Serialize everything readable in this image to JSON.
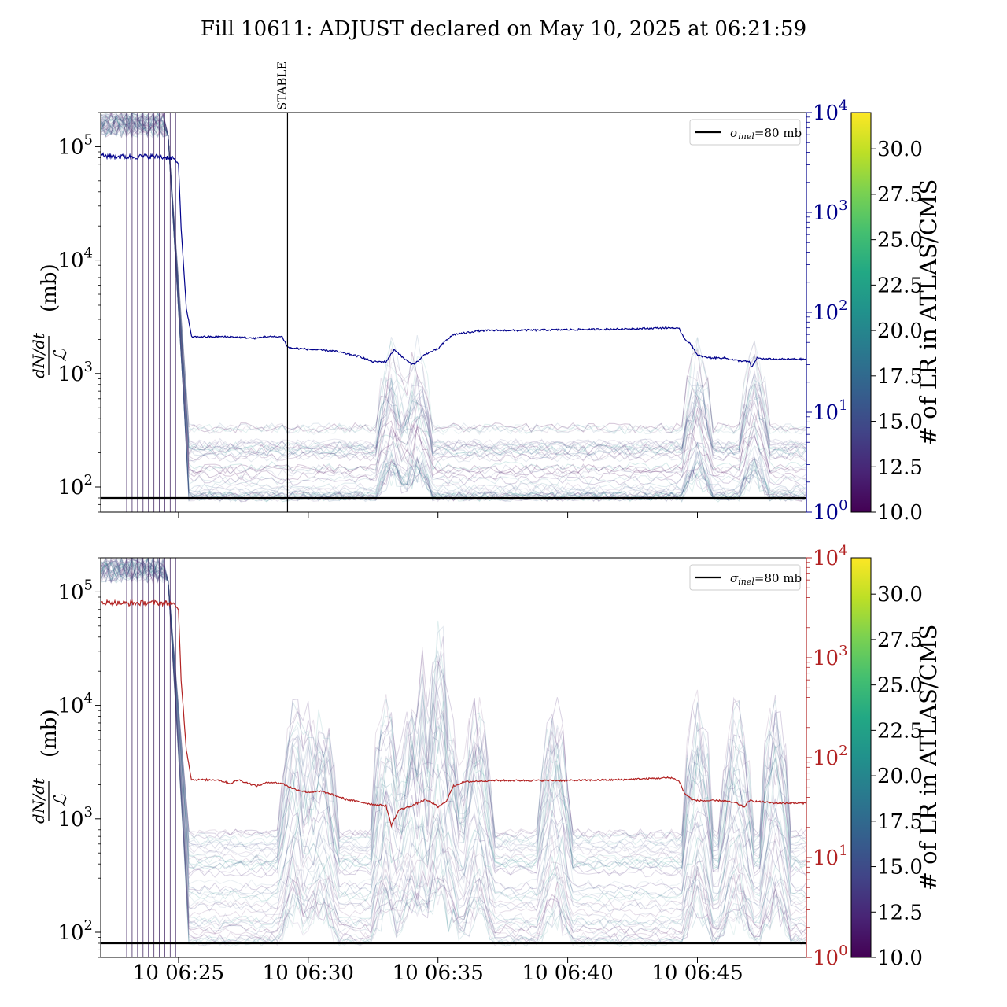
{
  "figure": {
    "title": "Fill 10611: ADJUST declared on May 10, 2025 at 06:21:59"
  },
  "chart_data": [
    {
      "type": "line",
      "panel": "top",
      "title": "Fill 10611: ADJUST declared on May 10, 2025 at 06:21:59",
      "ylabel_fraction_num": "dN/dt",
      "ylabel_fraction_den": "ℒ",
      "ylabel_unit": "(mb)",
      "yscale": "log",
      "ylim": [
        60,
        200000
      ],
      "yticks": [
        {
          "label": "10^5",
          "base": "10",
          "exp": "5",
          "value": 100000
        },
        {
          "label": "10^4",
          "base": "10",
          "exp": "4",
          "value": 10000
        },
        {
          "label": "10^3",
          "base": "10",
          "exp": "3",
          "value": 1000
        },
        {
          "label": "10^2",
          "base": "10",
          "exp": "2",
          "value": 100
        }
      ],
      "y2scale": "log",
      "y2lim": [
        1,
        10000
      ],
      "y2_color": "#00008b",
      "y2ticks": [
        {
          "label": "10^4",
          "base": "10",
          "exp": "4",
          "value": 10000
        },
        {
          "label": "10^3",
          "base": "10",
          "exp": "3",
          "value": 1000
        },
        {
          "label": "10^2",
          "base": "10",
          "exp": "2",
          "value": 100
        },
        {
          "label": "10^1",
          "base": "10",
          "exp": "1",
          "value": 10
        },
        {
          "label": "10^0",
          "base": "10",
          "exp": "0",
          "value": 1
        }
      ],
      "xlim_minutes_after_0620": [
        2.0,
        29.2
      ],
      "xtick_minutes_after_0620": [
        5,
        10,
        15,
        20,
        25
      ],
      "xtick_labels_shown": false,
      "event_marker": {
        "label": "STABLE",
        "x_minutes_after_0620": 9.2
      },
      "reference_line": {
        "name": "σinel=80 mb",
        "legend_sigma": "σ",
        "legend_sub": "inel",
        "legend_rest": "=80 mb",
        "value": 80,
        "color": "#000000"
      },
      "legend_position": "top-right",
      "highlight_series": {
        "axis": "right",
        "color": "#00008b",
        "x_minutes_after_0620": [
          2.0,
          3.0,
          4.0,
          4.8,
          5.0,
          5.1,
          5.3,
          5.5,
          5.6,
          7.0,
          8.0,
          8.3,
          9.0,
          9.2,
          9.3,
          11.0,
          12.0,
          12.5,
          13.0,
          13.3,
          13.4,
          13.6,
          14.0,
          14.2,
          14.5,
          15.0,
          15.3,
          15.6,
          16.0,
          16.5,
          17.0,
          18.0,
          20.0,
          22.0,
          24.0,
          24.3,
          24.5,
          24.8,
          25.0,
          25.5,
          26.0,
          26.5,
          27.0,
          27.1,
          27.3,
          27.6,
          28.0,
          29.2
        ],
        "values": [
          3700,
          3600,
          3650,
          3500,
          3000,
          700,
          110,
          57,
          57,
          57,
          55,
          57,
          57,
          45,
          44,
          41,
          36,
          32,
          32,
          42,
          41,
          36,
          30,
          32,
          38,
          43,
          52,
          60,
          62,
          65,
          66,
          66,
          67,
          68,
          70,
          68,
          55,
          46,
          37,
          35,
          35,
          33,
          32,
          28,
          35,
          34,
          34,
          34
        ]
      },
      "background_series": {
        "count_approx": 45,
        "color_scale_range": [
          10.0,
          32.0
        ],
        "note_values_shown_as_curves": true
      },
      "colorbar": {
        "label": "# of LR in ATLAS/CMS",
        "range": [
          10.0,
          32.0
        ],
        "ticks": [
          "10.0",
          "12.5",
          "15.0",
          "17.5",
          "20.0",
          "22.5",
          "25.0",
          "27.5",
          "30.0"
        ],
        "tick_values": [
          10.0,
          12.5,
          15.0,
          17.5,
          20.0,
          22.5,
          25.0,
          27.5,
          30.0
        ],
        "colormap": "viridis"
      }
    },
    {
      "type": "line",
      "panel": "bottom",
      "ylabel_fraction_num": "dN/dt",
      "ylabel_fraction_den": "ℒ",
      "ylabel_unit": "(mb)",
      "yscale": "log",
      "ylim": [
        60,
        200000
      ],
      "yticks": [
        {
          "label": "10^5",
          "base": "10",
          "exp": "5",
          "value": 100000
        },
        {
          "label": "10^4",
          "base": "10",
          "exp": "4",
          "value": 10000
        },
        {
          "label": "10^3",
          "base": "10",
          "exp": "3",
          "value": 1000
        },
        {
          "label": "10^2",
          "base": "10",
          "exp": "2",
          "value": 100
        }
      ],
      "y2scale": "log",
      "y2lim": [
        1,
        10000
      ],
      "y2_color": "#b22222",
      "y2ticks": [
        {
          "label": "10^4",
          "base": "10",
          "exp": "4",
          "value": 10000
        },
        {
          "label": "10^3",
          "base": "10",
          "exp": "3",
          "value": 1000
        },
        {
          "label": "10^2",
          "base": "10",
          "exp": "2",
          "value": 100
        },
        {
          "label": "10^1",
          "base": "10",
          "exp": "1",
          "value": 10
        },
        {
          "label": "10^0",
          "base": "10",
          "exp": "0",
          "value": 1
        }
      ],
      "xlim_minutes_after_0620": [
        2.0,
        29.2
      ],
      "xticks": [
        {
          "label": "10 06:25",
          "minutes_after_0620": 5
        },
        {
          "label": "10 06:30",
          "minutes_after_0620": 10
        },
        {
          "label": "10 06:35",
          "minutes_after_0620": 15
        },
        {
          "label": "10 06:40",
          "minutes_after_0620": 20
        },
        {
          "label": "10 06:45",
          "minutes_after_0620": 25
        }
      ],
      "reference_line": {
        "name": "σinel=80 mb",
        "legend_sigma": "σ",
        "legend_sub": "inel",
        "legend_rest": "=80 mb",
        "value": 80,
        "color": "#000000"
      },
      "legend_position": "top-right",
      "highlight_series": {
        "axis": "right",
        "color": "#b22222",
        "x_minutes_after_0620": [
          2.0,
          3.0,
          4.0,
          4.8,
          5.0,
          5.1,
          5.3,
          5.5,
          5.6,
          6.5,
          7.0,
          7.3,
          8.0,
          8.5,
          9.0,
          9.5,
          10.0,
          10.5,
          11.0,
          11.5,
          12.0,
          12.5,
          13.0,
          13.2,
          13.5,
          14.0,
          14.5,
          14.8,
          15.0,
          15.3,
          15.6,
          16.0,
          16.5,
          17.0,
          18.0,
          20.0,
          22.0,
          24.0,
          24.3,
          24.5,
          24.8,
          25.0,
          26.0,
          26.5,
          26.8,
          27.0,
          27.5,
          28.0,
          29.2
        ],
        "values": [
          3600,
          3500,
          3550,
          3500,
          3000,
          600,
          120,
          60,
          60,
          60,
          55,
          60,
          52,
          57,
          55,
          48,
          45,
          46,
          42,
          38,
          36,
          34,
          33,
          21,
          30,
          33,
          38,
          35,
          32,
          36,
          52,
          57,
          58,
          59,
          59,
          59,
          60,
          63,
          58,
          44,
          38,
          37,
          37,
          35,
          32,
          37,
          36,
          35,
          35
        ]
      },
      "background_series": {
        "count_approx": 45,
        "color_scale_range": [
          10.0,
          32.0
        ],
        "note_values_shown_as_curves": true
      },
      "colorbar": {
        "label": "# of LR in ATLAS/CMS",
        "range": [
          10.0,
          32.0
        ],
        "ticks": [
          "10.0",
          "12.5",
          "15.0",
          "17.5",
          "20.0",
          "22.5",
          "25.0",
          "27.5",
          "30.0"
        ],
        "tick_values": [
          10.0,
          12.5,
          15.0,
          17.5,
          20.0,
          22.5,
          25.0,
          27.5,
          30.0
        ],
        "colormap": "viridis"
      }
    }
  ]
}
